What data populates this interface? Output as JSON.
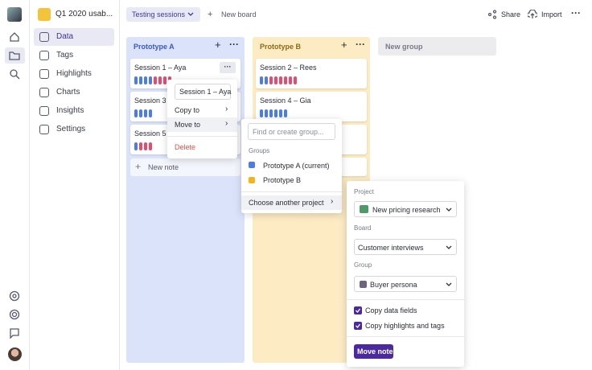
{
  "sidebar": {
    "project": "Q1 2020 usab...",
    "nav": [
      "Data",
      "Tags",
      "Highlights",
      "Charts",
      "Insights",
      "Settings"
    ]
  },
  "toolbar": {
    "board": "Testing sessions",
    "new_board": "New board",
    "share": "Share",
    "import": "Import"
  },
  "groups": [
    {
      "title": "Prototype A",
      "notes": [
        "Session 1 – Aya",
        "Session 3 –",
        "Session 5 –"
      ],
      "new_note": "New note"
    },
    {
      "title": "Prototype B",
      "notes": [
        "Session 2 – Rees",
        "Session 4 – Gia"
      ]
    },
    {
      "title": "New group"
    }
  ],
  "context_menu": {
    "input": "Session 1 – Aya",
    "items": [
      "Copy to",
      "Move to",
      "Delete"
    ]
  },
  "submenu": {
    "search_placeholder": "Find or create group...",
    "heading": "Groups",
    "groups": [
      "Prototype A (current)",
      "Prototype B"
    ],
    "other": "Choose another project"
  },
  "move_panel": {
    "project_label": "Project",
    "project": "New pricing research",
    "board_label": "Board",
    "board": "Customer interviews",
    "group_label": "Group",
    "group": "Buyer persona",
    "options": [
      "Copy data fields",
      "Copy highlights and tags"
    ],
    "button": "Move note"
  }
}
